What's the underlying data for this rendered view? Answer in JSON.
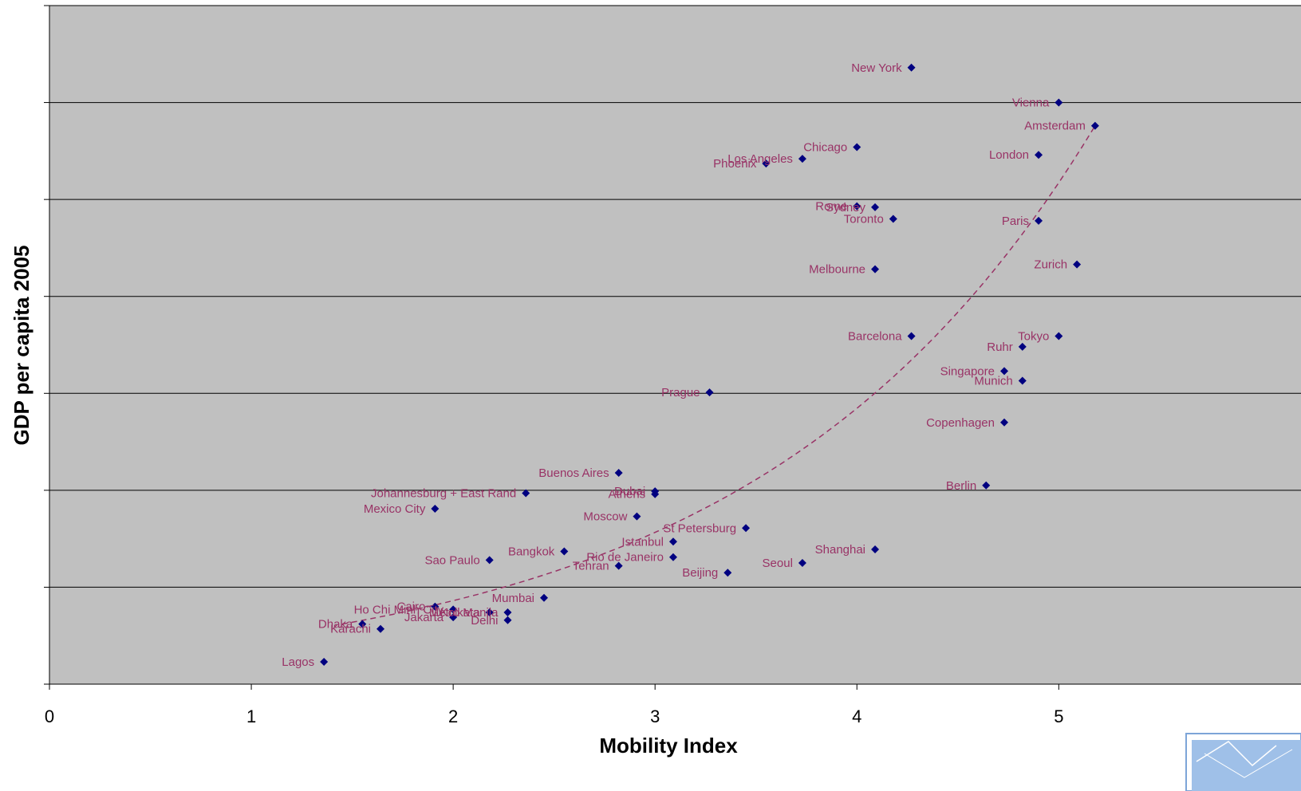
{
  "chart_data": {
    "type": "scatter",
    "title": "",
    "xlabel": "Mobility Index",
    "ylabel": "GDP per capita 2005",
    "xlim": [
      0,
      6.2
    ],
    "ylim": [
      0,
      7
    ],
    "x_ticks": [
      "0",
      "1",
      "2",
      "3",
      "4",
      "5"
    ],
    "y_ticks_labeled": false,
    "grid": "horizontal",
    "legend": "none",
    "colors": {
      "plot_background": "#c0c0c0",
      "marker": "#000080",
      "label": "#993366",
      "trendline": "#993366"
    },
    "trendline": {
      "type": "exponential",
      "style": "dashed",
      "x_range": [
        1.45,
        5.18
      ]
    },
    "points": [
      {
        "name": "New York",
        "x": 4.27,
        "y": 6.36
      },
      {
        "name": "Vienna",
        "x": 5.0,
        "y": 6.0
      },
      {
        "name": "Amsterdam",
        "x": 5.18,
        "y": 5.76
      },
      {
        "name": "Chicago",
        "x": 4.0,
        "y": 5.54
      },
      {
        "name": "London",
        "x": 4.9,
        "y": 5.46
      },
      {
        "name": "Los Angeles",
        "x": 3.73,
        "y": 5.42
      },
      {
        "name": "Phoenix",
        "x": 3.55,
        "y": 5.37
      },
      {
        "name": "Sydney",
        "x": 4.09,
        "y": 4.92
      },
      {
        "name": "Rome",
        "x": 4.0,
        "y": 4.93
      },
      {
        "name": "Toronto",
        "x": 4.18,
        "y": 4.8
      },
      {
        "name": "Paris",
        "x": 4.9,
        "y": 4.78
      },
      {
        "name": "Zurich",
        "x": 5.09,
        "y": 4.33
      },
      {
        "name": "Melbourne",
        "x": 4.09,
        "y": 4.28
      },
      {
        "name": "Barcelona",
        "x": 4.27,
        "y": 3.59
      },
      {
        "name": "Tokyo",
        "x": 5.0,
        "y": 3.59
      },
      {
        "name": "Ruhr",
        "x": 4.82,
        "y": 3.48
      },
      {
        "name": "Singapore",
        "x": 4.73,
        "y": 3.23
      },
      {
        "name": "Munich",
        "x": 4.82,
        "y": 3.13
      },
      {
        "name": "Prague",
        "x": 3.27,
        "y": 3.01
      },
      {
        "name": "Copenhagen",
        "x": 4.73,
        "y": 2.7
      },
      {
        "name": "Berlin",
        "x": 4.64,
        "y": 2.05
      },
      {
        "name": "Buenos Aires",
        "x": 2.82,
        "y": 2.18
      },
      {
        "name": "Dubai",
        "x": 3.0,
        "y": 1.99
      },
      {
        "name": "Athens",
        "x": 3.0,
        "y": 1.96
      },
      {
        "name": "Johannesburg + East Rand",
        "x": 2.36,
        "y": 1.97
      },
      {
        "name": "Mexico City",
        "x": 1.91,
        "y": 1.81
      },
      {
        "name": "Moscow",
        "x": 2.91,
        "y": 1.73
      },
      {
        "name": "St Petersburg",
        "x": 3.45,
        "y": 1.61
      },
      {
        "name": "Istanbul",
        "x": 3.09,
        "y": 1.47
      },
      {
        "name": "Shanghai",
        "x": 4.09,
        "y": 1.39
      },
      {
        "name": "Bangkok",
        "x": 2.55,
        "y": 1.37
      },
      {
        "name": "Rio de Janeiro",
        "x": 3.09,
        "y": 1.31
      },
      {
        "name": "Sao Paulo",
        "x": 2.18,
        "y": 1.28
      },
      {
        "name": "Tehran",
        "x": 2.82,
        "y": 1.22
      },
      {
        "name": "Seoul",
        "x": 3.73,
        "y": 1.25
      },
      {
        "name": "Beijing",
        "x": 3.36,
        "y": 1.15
      },
      {
        "name": "Mumbai",
        "x": 2.45,
        "y": 0.89
      },
      {
        "name": "Ho Chi Minh City",
        "x": 2.0,
        "y": 0.77
      },
      {
        "name": "Cairo",
        "x": 1.91,
        "y": 0.8
      },
      {
        "name": "Metro Manila",
        "x": 2.27,
        "y": 0.74
      },
      {
        "name": "Jakarta",
        "x": 2.0,
        "y": 0.69
      },
      {
        "name": "Kolkata",
        "x": 2.18,
        "y": 0.74
      },
      {
        "name": "Delhi",
        "x": 2.27,
        "y": 0.66
      },
      {
        "name": "Dhaka",
        "x": 1.55,
        "y": 0.62
      },
      {
        "name": "Karachi",
        "x": 1.64,
        "y": 0.57
      },
      {
        "name": "Lagos",
        "x": 1.36,
        "y": 0.23
      }
    ]
  }
}
